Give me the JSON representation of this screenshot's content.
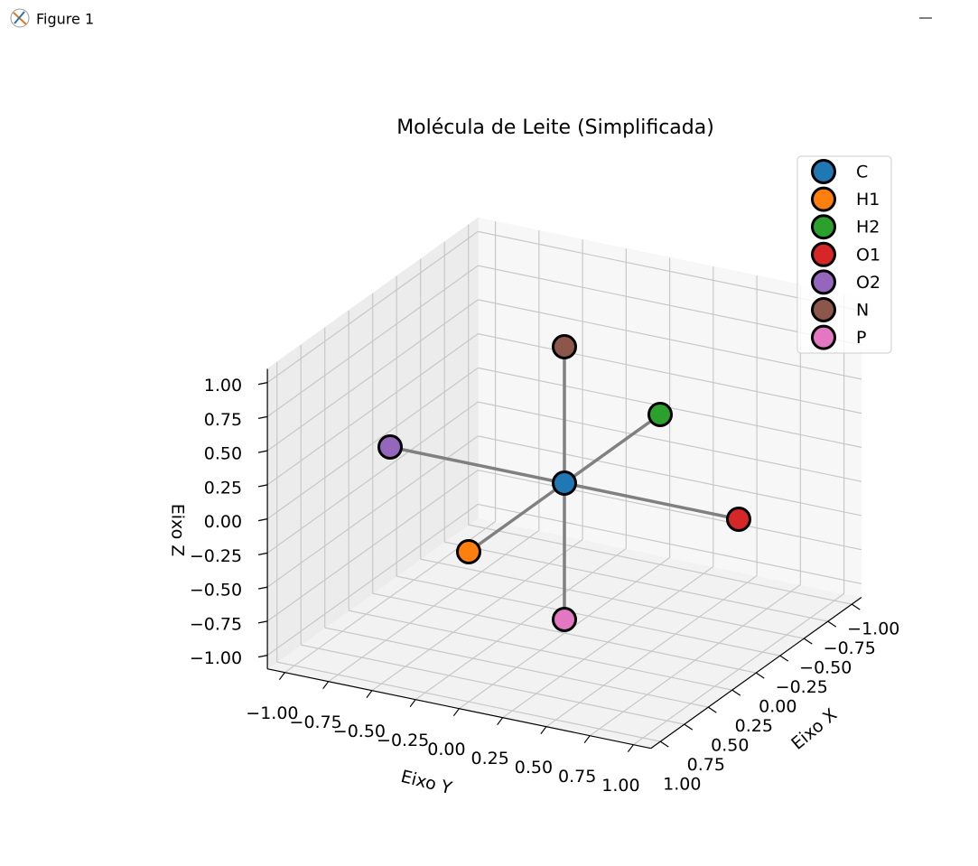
{
  "window_title": "Figure 1",
  "chart_data": {
    "type": "scatter3d",
    "title": "Molécula de Leite (Simplificada)",
    "xlabel": "Eixo X",
    "ylabel": "Eixo Y",
    "zlabel": "Eixo Z",
    "series": [
      {
        "name": "C",
        "color": "#1f77b4",
        "x": [
          0
        ],
        "y": [
          0
        ],
        "z": [
          0
        ]
      },
      {
        "name": "H1",
        "color": "#ff7f0e",
        "x": [
          1
        ],
        "y": [
          0
        ],
        "z": [
          0
        ]
      },
      {
        "name": "H2",
        "color": "#2ca02c",
        "x": [
          -1
        ],
        "y": [
          0
        ],
        "z": [
          0
        ]
      },
      {
        "name": "O1",
        "color": "#d62728",
        "x": [
          0
        ],
        "y": [
          1
        ],
        "z": [
          0
        ]
      },
      {
        "name": "O2",
        "color": "#9467bd",
        "x": [
          0
        ],
        "y": [
          -1
        ],
        "z": [
          0
        ]
      },
      {
        "name": "N",
        "color": "#8c564b",
        "x": [
          0
        ],
        "y": [
          0
        ],
        "z": [
          1
        ]
      },
      {
        "name": "P",
        "color": "#e377c2",
        "x": [
          0
        ],
        "y": [
          0
        ],
        "z": [
          -1
        ]
      }
    ],
    "bonds": [
      [
        0,
        1
      ],
      [
        0,
        2
      ],
      [
        0,
        3
      ],
      [
        0,
        4
      ],
      [
        0,
        5
      ],
      [
        0,
        6
      ]
    ],
    "bond_color": "#808080",
    "xlim": [
      -1.1,
      1.1
    ],
    "ylim": [
      -1.1,
      1.1
    ],
    "zlim": [
      -1.1,
      1.1
    ],
    "xticks": [
      {
        "value": -1,
        "label": "−1.00"
      },
      {
        "value": -0.75,
        "label": "−0.75"
      },
      {
        "value": -0.5,
        "label": "−0.50"
      },
      {
        "value": -0.25,
        "label": "−0.25"
      },
      {
        "value": 0,
        "label": "0.00"
      },
      0.25,
      {
        "value": 0.5,
        "label": "0.50"
      },
      0.75,
      {
        "value": 1,
        "label": "1.00"
      }
    ],
    "yticks": [
      {
        "value": -1,
        "label": "−1.00"
      },
      {
        "value": -0.75,
        "label": "−0.75"
      },
      {
        "value": -0.5,
        "label": "−0.50"
      },
      {
        "value": -0.25,
        "label": "−0.25"
      },
      {
        "value": 0,
        "label": "0.00"
      },
      0.25,
      {
        "value": 0.5,
        "label": "0.50"
      },
      0.75,
      {
        "value": 1,
        "label": "1.00"
      }
    ],
    "zticks": [
      {
        "value": -1,
        "label": "−1.00"
      },
      {
        "value": -0.75,
        "label": "−0.75"
      },
      {
        "value": -0.5,
        "label": "−0.50"
      },
      {
        "value": -0.25,
        "label": "−0.25"
      },
      {
        "value": 0,
        "label": "0.00"
      },
      0.25,
      {
        "value": 0.5,
        "label": "0.50"
      },
      0.75,
      {
        "value": 1,
        "label": "1.00"
      }
    ],
    "grid": true,
    "legend": "upper right"
  }
}
